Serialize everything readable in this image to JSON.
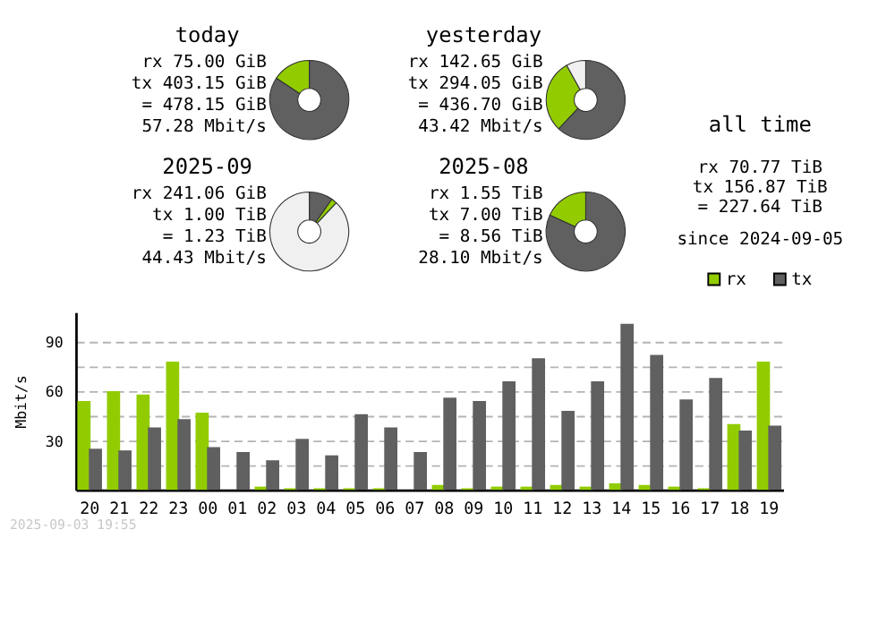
{
  "chart_data": [
    {
      "type": "donut",
      "title": "today",
      "values": [
        84.3,
        15.7
      ],
      "colors": [
        "#606060",
        "#92cc00"
      ],
      "annotations": [
        "rx 75.00 GiB",
        "tx 403.15 GiB",
        "= 478.15 GiB",
        "57.28 Mbit/s"
      ]
    },
    {
      "type": "donut",
      "title": "yesterday",
      "values": [
        62.0,
        30.0,
        8.0
      ],
      "colors": [
        "#606060",
        "#92cc00",
        "#f0f0f0"
      ],
      "annotations": [
        "rx 142.65 GiB",
        "tx 294.05 GiB",
        "= 436.70 GiB",
        "43.42 Mbit/s"
      ]
    },
    {
      "type": "donut",
      "title": "2025-09",
      "values": [
        9.7,
        2.3,
        88.0
      ],
      "colors": [
        "#606060",
        "#92cc00",
        "#f0f0f0"
      ],
      "annotations": [
        "rx 241.06 GiB",
        "tx 1.00 TiB",
        "= 1.23 TiB",
        "44.43 Mbit/s"
      ]
    },
    {
      "type": "donut",
      "title": "2025-08",
      "values": [
        81.9,
        18.1
      ],
      "colors": [
        "#606060",
        "#92cc00"
      ],
      "annotations": [
        "rx 1.55 TiB",
        "tx 7.00 TiB",
        "= 8.56 TiB",
        "28.10 Mbit/s"
      ]
    },
    {
      "type": "other",
      "title": "all time",
      "annotations": [
        "rx 70.77 TiB",
        "tx 156.87 TiB",
        "= 227.64 TiB",
        "since 2024-09-05"
      ]
    },
    {
      "type": "bar",
      "ylabel": "Mbit/s",
      "categories": [
        "20",
        "21",
        "22",
        "23",
        "00",
        "01",
        "02",
        "03",
        "04",
        "05",
        "06",
        "07",
        "08",
        "09",
        "10",
        "11",
        "12",
        "13",
        "14",
        "15",
        "16",
        "17",
        "18",
        "19"
      ],
      "series": [
        {
          "name": "rx",
          "color": "#92cc00",
          "values": [
            54,
            60,
            58,
            78,
            47,
            0,
            2,
            1,
            1,
            1,
            1,
            0,
            3,
            1,
            2,
            2,
            3,
            2,
            4,
            3,
            2,
            1,
            40,
            78
          ]
        },
        {
          "name": "tx",
          "color": "#606060",
          "values": [
            25,
            24,
            38,
            43,
            26,
            23,
            18,
            31,
            21,
            46,
            38,
            23,
            56,
            54,
            66,
            80,
            48,
            66,
            101,
            82,
            55,
            68,
            36,
            39
          ]
        }
      ],
      "ylim": [
        0,
        108
      ],
      "yticks": [
        {
          "value": 15,
          "label": null
        },
        30,
        {
          "value": 45,
          "label": null
        },
        60,
        {
          "value": 75,
          "label": null
        },
        90
      ],
      "grid": "y",
      "legend": "top right",
      "annotations": [
        "2025-09-03 19:55"
      ]
    }
  ]
}
